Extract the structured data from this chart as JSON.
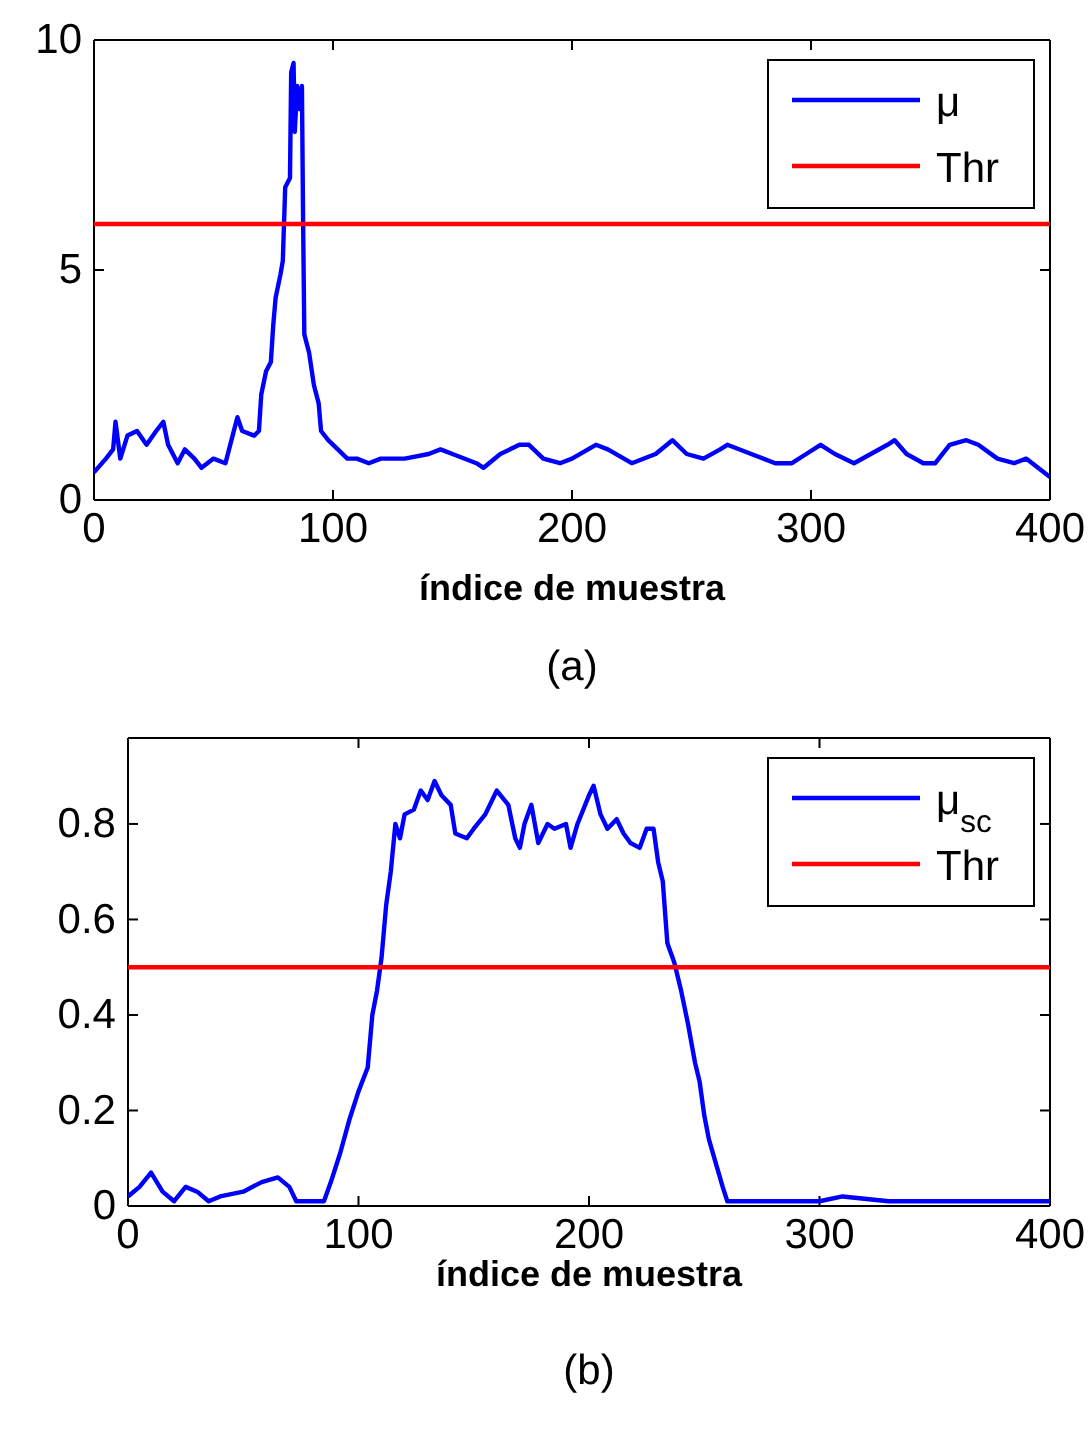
{
  "chart_data": [
    {
      "type": "line",
      "xlabel": "índice de muestra",
      "annotations": [
        "(a)"
      ],
      "xlim": [
        0,
        400
      ],
      "xticks": [
        0,
        100,
        200,
        300,
        400
      ],
      "ylim": [
        0,
        10
      ],
      "yticks": [
        0,
        5,
        10
      ],
      "legend": "top right",
      "grid": false,
      "series": [
        {
          "name": "μ",
          "color": "#0000ff",
          "x": [
            0,
            5,
            8,
            9,
            11,
            14,
            18,
            22,
            26,
            29,
            31,
            35,
            38,
            42,
            45,
            50,
            55,
            58,
            60,
            62,
            67,
            69,
            70,
            72,
            74,
            75,
            76,
            78,
            79,
            80,
            82,
            82.5,
            83.5,
            84,
            85,
            86,
            87,
            87.5,
            88,
            90,
            92,
            94,
            95,
            98,
            102,
            106,
            110,
            115,
            120,
            130,
            140,
            145,
            150,
            160,
            163,
            170,
            178,
            182,
            188,
            195,
            200,
            210,
            215,
            225,
            235,
            242,
            248,
            255,
            262,
            265,
            275,
            285,
            292,
            298,
            304,
            310,
            318,
            325,
            332,
            335,
            340,
            347,
            352,
            358,
            365,
            370,
            378,
            385,
            390,
            395,
            400
          ],
          "values": [
            0.6,
            0.9,
            1.1,
            1.7,
            0.9,
            1.4,
            1.5,
            1.2,
            1.5,
            1.7,
            1.2,
            0.8,
            1.1,
            0.9,
            0.7,
            0.9,
            0.8,
            1.4,
            1.8,
            1.5,
            1.4,
            1.5,
            2.3,
            2.8,
            3.0,
            3.8,
            4.4,
            4.9,
            5.2,
            6.8,
            7.0,
            9.3,
            9.5,
            8.0,
            9.0,
            8.5,
            9.0,
            6.0,
            3.6,
            3.2,
            2.5,
            2.1,
            1.5,
            1.3,
            1.1,
            0.9,
            0.9,
            0.8,
            0.9,
            0.9,
            1.0,
            1.1,
            1.0,
            0.8,
            0.7,
            1.0,
            1.2,
            1.2,
            0.9,
            0.8,
            0.9,
            1.2,
            1.1,
            0.8,
            1.0,
            1.3,
            1.0,
            0.9,
            1.1,
            1.2,
            1.0,
            0.8,
            0.8,
            1.0,
            1.2,
            1.0,
            0.8,
            1.0,
            1.2,
            1.3,
            1.0,
            0.8,
            0.8,
            1.2,
            1.3,
            1.2,
            0.9,
            0.8,
            0.9,
            0.7,
            0.5
          ]
        }
      ],
      "ref_lines": [
        {
          "axis": "y",
          "value": 6,
          "label": "Thr",
          "color": "#ff0000"
        }
      ]
    },
    {
      "type": "line",
      "xlabel": "índice de muestra",
      "annotations": [
        "(b)"
      ],
      "xlim": [
        0,
        400
      ],
      "xticks": [
        0,
        100,
        200,
        300,
        400
      ],
      "ylim": [
        0,
        0.98
      ],
      "yticks": [
        0,
        0.2,
        0.4,
        0.6,
        0.8
      ],
      "legend": "top right",
      "grid": false,
      "series": [
        {
          "name": "μ$_{sc}$",
          "color": "#0000ff",
          "x": [
            0,
            5,
            10,
            15,
            20,
            25,
            30,
            35,
            40,
            50,
            58,
            65,
            70,
            73,
            80,
            85,
            88,
            92,
            96,
            100,
            104,
            106,
            108,
            110,
            112,
            114,
            116,
            118,
            120,
            124,
            127,
            130,
            133,
            136,
            140,
            142,
            147,
            150,
            155,
            160,
            165,
            168,
            170,
            172,
            175,
            178,
            182,
            185,
            190,
            192,
            195,
            200,
            202,
            205,
            208,
            212,
            215,
            218,
            222,
            225,
            228,
            230,
            232,
            234,
            237,
            240,
            243,
            246,
            248,
            250,
            252,
            255,
            258,
            260,
            270,
            280,
            300,
            310,
            330,
            360,
            400
          ],
          "values": [
            0.02,
            0.04,
            0.07,
            0.03,
            0.01,
            0.04,
            0.03,
            0.01,
            0.02,
            0.03,
            0.05,
            0.06,
            0.04,
            0.01,
            0.01,
            0.01,
            0.05,
            0.11,
            0.18,
            0.24,
            0.29,
            0.4,
            0.45,
            0.52,
            0.63,
            0.7,
            0.8,
            0.77,
            0.82,
            0.83,
            0.87,
            0.85,
            0.89,
            0.86,
            0.84,
            0.78,
            0.77,
            0.79,
            0.82,
            0.87,
            0.84,
            0.77,
            0.75,
            0.8,
            0.84,
            0.76,
            0.8,
            0.79,
            0.8,
            0.75,
            0.8,
            0.86,
            0.88,
            0.82,
            0.79,
            0.81,
            0.78,
            0.76,
            0.75,
            0.79,
            0.79,
            0.72,
            0.68,
            0.55,
            0.51,
            0.45,
            0.38,
            0.3,
            0.26,
            0.19,
            0.14,
            0.09,
            0.04,
            0.01,
            0.01,
            0.01,
            0.01,
            0.02,
            0.01,
            0.01,
            0.01
          ]
        }
      ],
      "ref_lines": [
        {
          "axis": "y",
          "value": 0.5,
          "label": "Thr",
          "color": "#ff0000"
        }
      ]
    }
  ]
}
